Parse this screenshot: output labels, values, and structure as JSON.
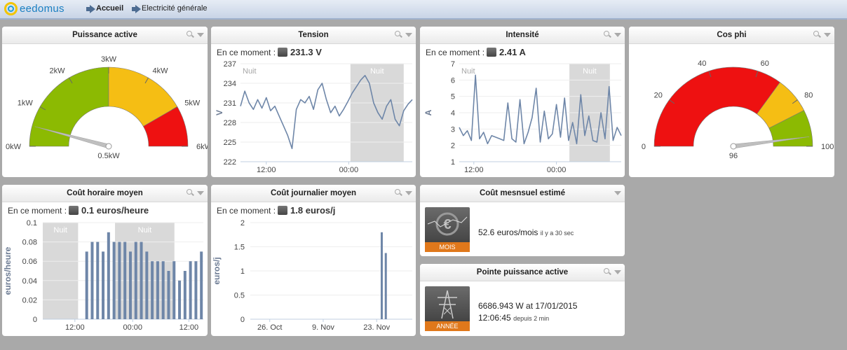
{
  "header": {
    "logo_text": "eedomus",
    "crumb_home": "Accueil",
    "crumb_page": "Electricité générale"
  },
  "panels": {
    "puissance": {
      "title": "Puissance active",
      "value_label": "0.5kW",
      "ticks": [
        "0kW",
        "1kW",
        "2kW",
        "3kW",
        "4kW",
        "5kW",
        "6kW"
      ]
    },
    "tension": {
      "title": "Tension",
      "now_label": "En ce moment :",
      "now_value": "231.3 V"
    },
    "intensite": {
      "title": "Intensité",
      "now_label": "En ce moment :",
      "now_value": "2.41 A"
    },
    "cosphi": {
      "title": "Cos phi",
      "value_label": "96",
      "ticks": [
        "0",
        "20",
        "40",
        "60",
        "80",
        "100"
      ]
    },
    "cout_horaire": {
      "title": "Coût horaire moyen",
      "now_label": "En ce moment :",
      "now_value": "0.1 euros/heure"
    },
    "cout_journalier": {
      "title": "Coût journalier moyen",
      "now_label": "En ce moment :",
      "now_value": "1.8 euros/j"
    },
    "cout_mensuel": {
      "title": "Coût mesnsuel estimé",
      "value": "52.6 euros/mois",
      "since": "il y a 30 sec",
      "tile_label": "MOIS"
    },
    "pointe": {
      "title": "Pointe puissance active",
      "value": "6686.943 W at 17/01/2015",
      "time": "12:06:45",
      "since": "depuis 2 min",
      "tile_label": "ANNÉE"
    }
  },
  "colors": {
    "gauge_green": "#8cba02",
    "gauge_yellow": "#f5be14",
    "gauge_red": "#ee1111",
    "series": "#6e86a8",
    "night_band": "#d9d9d9"
  },
  "chart_data": [
    {
      "type": "gauge",
      "title": "Puissance active",
      "value": 0.5,
      "range": [
        0,
        6
      ],
      "unit": "kW",
      "bands": [
        {
          "from": 0,
          "to": 3,
          "color": "#8cba02"
        },
        {
          "from": 3,
          "to": 5,
          "color": "#f5be14"
        },
        {
          "from": 5,
          "to": 6,
          "color": "#ee1111"
        }
      ],
      "tick_labels": [
        "0kW",
        "1kW",
        "2kW",
        "3kW",
        "4kW",
        "5kW",
        "6kW"
      ]
    },
    {
      "type": "line",
      "title": "Tension",
      "ylabel": "V",
      "ylim": [
        222,
        237
      ],
      "yticks": [
        222,
        225,
        228,
        231,
        234,
        237
      ],
      "xticks": [
        "12:00",
        "00:00"
      ],
      "band_label": "Nuit",
      "series": [
        {
          "values": [
            230.5,
            232.8,
            231,
            230,
            231.5,
            230.2,
            231.8,
            229.8,
            230.5,
            229,
            227.5,
            226,
            224,
            230,
            231.5,
            231,
            232,
            230,
            233,
            234,
            231.5,
            229.5,
            230.5,
            229,
            230,
            231.2,
            232.5,
            233.5,
            234.5,
            235.2,
            234,
            231,
            229.5,
            228.5,
            230.5,
            231.5,
            228.5,
            227.5,
            229.8,
            230.8,
            231.5
          ]
        }
      ]
    },
    {
      "type": "line",
      "title": "Intensité",
      "ylabel": "A",
      "ylim": [
        1,
        7
      ],
      "yticks": [
        1,
        2,
        3,
        4,
        5,
        6,
        7
      ],
      "xticks": [
        "12:00",
        "00:00"
      ],
      "band_label": "Nuit",
      "series": [
        {
          "values": [
            3.1,
            2.6,
            2.9,
            2.3,
            6.3,
            2.4,
            2.8,
            2.1,
            2.6,
            2.5,
            2.4,
            2.3,
            4.6,
            2.4,
            2.2,
            4.8,
            2.1,
            2.8,
            3.7,
            5.5,
            2.2,
            4.1,
            2.4,
            2.7,
            4.5,
            2.5,
            4.9,
            2.3,
            3.4,
            2.1,
            5.1,
            2.6,
            3.8,
            2.3,
            2.2,
            4.0,
            2.4,
            5.6,
            2.3,
            3.1,
            2.6
          ]
        }
      ]
    },
    {
      "type": "gauge",
      "title": "Cos phi",
      "value": 96,
      "range": [
        0,
        100
      ],
      "bands": [
        {
          "from": 0,
          "to": 70,
          "color": "#ee1111"
        },
        {
          "from": 70,
          "to": 85,
          "color": "#f5be14"
        },
        {
          "from": 85,
          "to": 100,
          "color": "#8cba02"
        }
      ],
      "tick_labels": [
        "0",
        "20",
        "40",
        "60",
        "80",
        "100"
      ]
    },
    {
      "type": "bar",
      "title": "Coût horaire moyen",
      "ylabel": "euros/heure",
      "ylim": [
        0,
        0.1
      ],
      "yticks": [
        0,
        0.02,
        0.04,
        0.06,
        0.08,
        0.1
      ],
      "xticks": [
        "12:00",
        "00:00",
        "12:00"
      ],
      "band_label": "Nuit",
      "values": [
        0.07,
        0.08,
        0.08,
        0.07,
        0.09,
        0.08,
        0.08,
        0.08,
        0.07,
        0.08,
        0.08,
        0.07,
        0.06,
        0.06,
        0.06,
        0.05,
        0.06,
        0.04,
        0.05,
        0.06,
        0.06,
        0.07
      ]
    },
    {
      "type": "bar",
      "title": "Coût journalier moyen",
      "ylabel": "euros/j",
      "ylim": [
        0,
        2
      ],
      "yticks": [
        0,
        0.5,
        1,
        1.5,
        2
      ],
      "xticks": [
        "26. Oct",
        "9. Nov",
        "23. Nov"
      ],
      "values": [
        1.8,
        1.37
      ]
    }
  ]
}
